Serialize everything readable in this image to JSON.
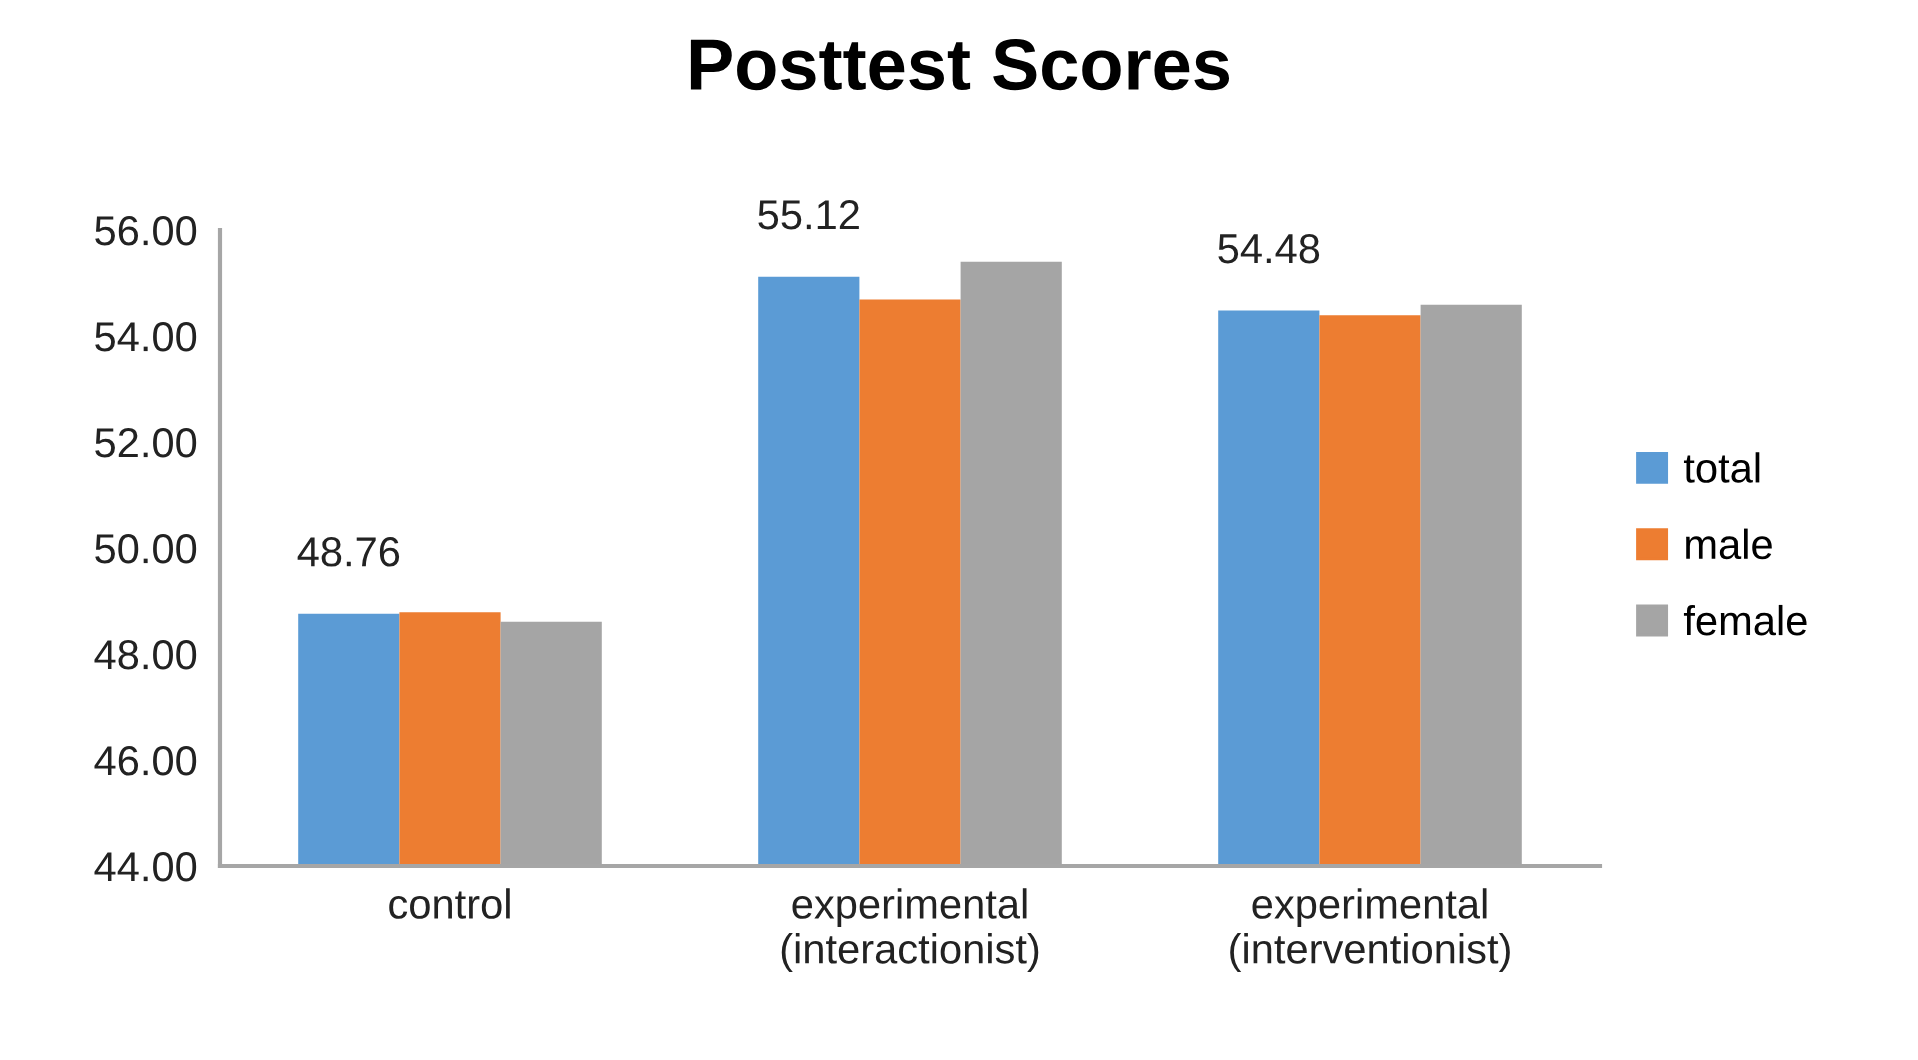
{
  "chart_data": {
    "type": "bar",
    "title": "Posttest Scores",
    "categories": [
      "control",
      "experimental\n(interactionist)",
      "experimental\n(interventionist)"
    ],
    "series": [
      {
        "name": "total",
        "color": "#5b9bd5",
        "values": [
          48.76,
          55.12,
          54.48
        ],
        "value_labels": [
          "48.76",
          "55.12",
          "54.48"
        ]
      },
      {
        "name": "male",
        "color": "#ed7d31",
        "values": [
          48.79,
          54.69,
          54.39
        ]
      },
      {
        "name": "female",
        "color": "#a5a5a5",
        "values": [
          48.61,
          55.4,
          54.59
        ]
      }
    ],
    "ylim": [
      44,
      56
    ],
    "yticks": [
      {
        "value": 44,
        "label": "44.00"
      },
      {
        "value": 46,
        "label": "46.00"
      },
      {
        "value": 48,
        "label": "48.00"
      },
      {
        "value": 50,
        "label": "50.00"
      },
      {
        "value": 52,
        "label": "52.00"
      },
      {
        "value": 54,
        "label": "54.00"
      },
      {
        "value": 56,
        "label": "56.00"
      }
    ],
    "grid": false,
    "legend": "right"
  }
}
